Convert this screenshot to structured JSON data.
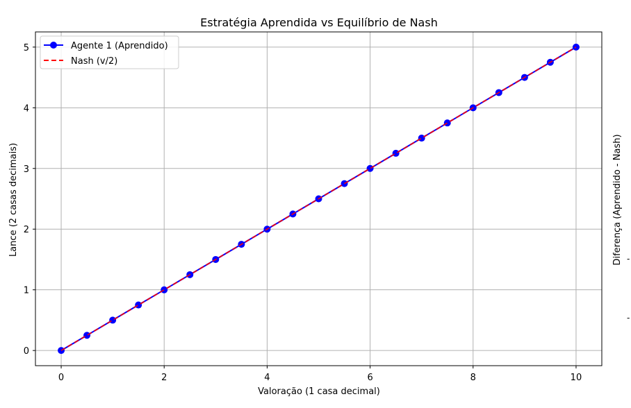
{
  "chart_data": {
    "type": "line",
    "title": "Estratégia Aprendida vs Equilíbrio de Nash",
    "xlabel": "Valoração (1 casa decimal)",
    "ylabel": "Lance (2 casas decimais)",
    "right_ylabel": "Diferença (Aprendido - Nash)",
    "xlim": [
      -0.5,
      10.5
    ],
    "ylim": [
      -0.25,
      5.25
    ],
    "xticks": [
      0,
      2,
      4,
      6,
      8,
      10
    ],
    "yticks": [
      0,
      1,
      2,
      3,
      4,
      5
    ],
    "right_tick_marks": [
      "-",
      "-"
    ],
    "grid": true,
    "legend_position": "top-left",
    "series": [
      {
        "name": "Agente 1 (Aprendido)",
        "color": "#0000ff",
        "marker": "circle",
        "line_style": "solid",
        "x": [
          0,
          0.5,
          1,
          1.5,
          2,
          2.5,
          3,
          3.5,
          4,
          4.5,
          5,
          5.5,
          6,
          6.5,
          7,
          7.5,
          8,
          8.5,
          9,
          9.5,
          10
        ],
        "y": [
          0,
          0.25,
          0.5,
          0.75,
          1,
          1.25,
          1.5,
          1.75,
          2,
          2.25,
          2.5,
          2.75,
          3,
          3.25,
          3.5,
          3.75,
          4,
          4.25,
          4.5,
          4.75,
          5
        ]
      },
      {
        "name": "Nash (v/2)",
        "color": "#ff0000",
        "marker": "none",
        "line_style": "dashed",
        "x": [
          0,
          10
        ],
        "y": [
          0,
          5
        ]
      }
    ]
  }
}
